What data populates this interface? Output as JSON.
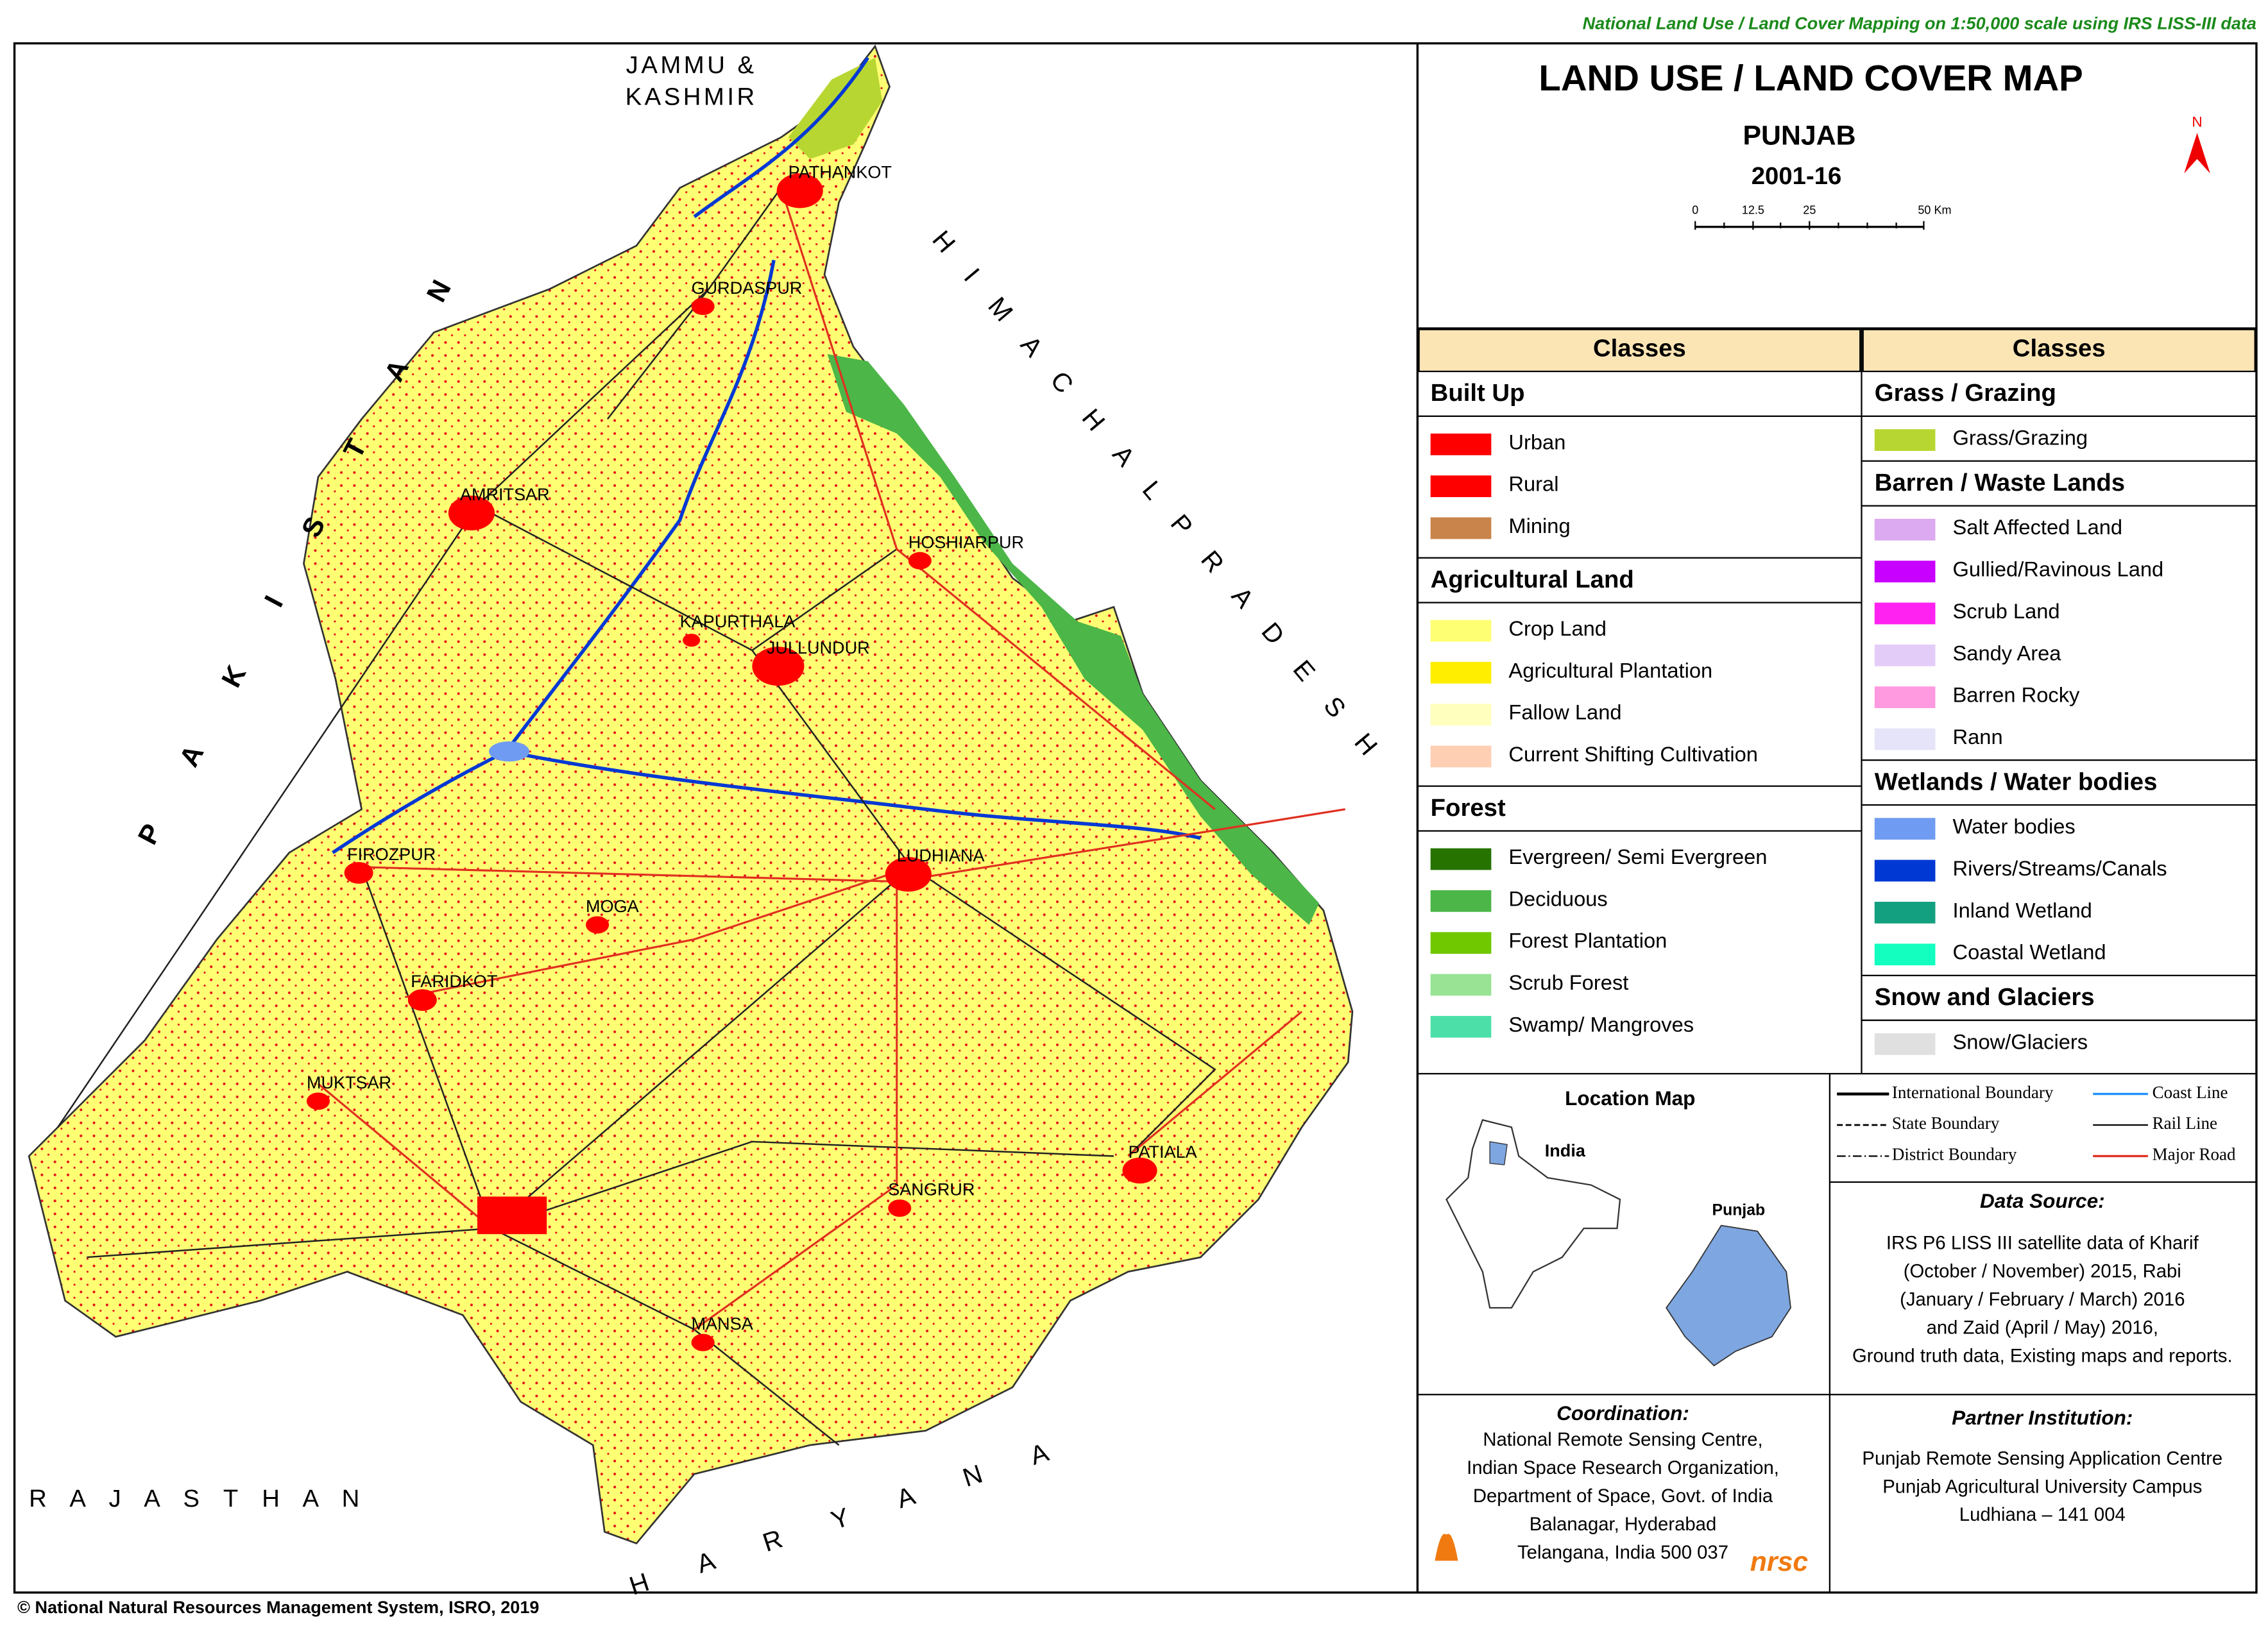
{
  "header": {
    "tagline": "National Land Use / Land Cover Mapping on 1:50,000 scale using IRS LISS-III data",
    "title": "LAND USE / LAND COVER MAP",
    "state": "PUNJAB",
    "period": "2001-16",
    "north": "N",
    "scale_labels": [
      "0",
      "12.5",
      "25",
      "50 Km"
    ]
  },
  "map": {
    "neighbors": {
      "jk": [
        "JAMMU &",
        "KASHMIR"
      ],
      "pakistan": "P A K I S T A N",
      "himachal": "H I M A C H A L   P R A D E S H",
      "haryana": "H A R Y A N A",
      "rajasthan": "R A J A S T H A N"
    },
    "cities": [
      "PATHANKOT",
      "GURDASPUR",
      "AMRITSAR",
      "HOSHIARPUR",
      "KAPURTHALA",
      "JULLUNDUR",
      "FIROZPUR",
      "LUDHIANA",
      "MOGA",
      "FARIDKOT",
      "MUKTSAR",
      "PATIALA",
      "SANGRUR",
      "MANSA"
    ]
  },
  "legend": {
    "columns": [
      {
        "heading": "Classes",
        "groups": [
          {
            "name": "Built Up",
            "items": [
              {
                "label": "Urban",
                "color": "#ff0000"
              },
              {
                "label": "Rural",
                "color": "#ff0000"
              },
              {
                "label": "Mining",
                "color": "#c8844a"
              }
            ]
          },
          {
            "name": "Agricultural Land",
            "items": [
              {
                "label": "Crop Land",
                "color": "#ffff73"
              },
              {
                "label": "Agricultural Plantation",
                "color": "#ffee00"
              },
              {
                "label": "Fallow Land",
                "color": "#ffffbe"
              },
              {
                "label": "Current Shifting Cultivation",
                "color": "#ffcfb4"
              }
            ]
          },
          {
            "name": "Forest",
            "items": [
              {
                "label": "Evergreen/ Semi Evergreen",
                "color": "#267300"
              },
              {
                "label": "Deciduous",
                "color": "#4cb648"
              },
              {
                "label": "Forest Plantation",
                "color": "#70c800"
              },
              {
                "label": "Scrub Forest",
                "color": "#98e394"
              },
              {
                "label": "Swamp/ Mangroves",
                "color": "#4ce0a8"
              }
            ]
          }
        ]
      },
      {
        "heading": "Classes",
        "groups": [
          {
            "name": "Grass / Grazing",
            "items": [
              {
                "label": "Grass/Grazing",
                "color": "#b8d631"
              }
            ]
          },
          {
            "name": "Barren / Waste Lands",
            "items": [
              {
                "label": "Salt Affected Land",
                "color": "#dcaaf0"
              },
              {
                "label": "Gullied/Ravinous Land",
                "color": "#c800ff"
              },
              {
                "label": "Scrub Land",
                "color": "#ff22f0"
              },
              {
                "label": "Sandy Area",
                "color": "#e4ccf8"
              },
              {
                "label": "Barren Rocky",
                "color": "#ff99e0"
              },
              {
                "label": "Rann",
                "color": "#e6e4f8"
              }
            ]
          },
          {
            "name": "Wetlands / Water bodies",
            "items": [
              {
                "label": "Water bodies",
                "color": "#6f9cf2"
              },
              {
                "label": "Rivers/Streams/Canals",
                "color": "#0038d4"
              },
              {
                "label": "Inland Wetland",
                "color": "#12a080"
              },
              {
                "label": "Coastal Wetland",
                "color": "#12ffc0"
              }
            ]
          },
          {
            "name": "Snow and Glaciers",
            "items": [
              {
                "label": "Snow/Glaciers",
                "color": "#e0e0e0"
              }
            ]
          }
        ]
      }
    ]
  },
  "location_map": {
    "title": "Location Map",
    "india": "India",
    "punjab": "Punjab"
  },
  "line_legend": [
    {
      "label": "International Boundary",
      "style": "intl"
    },
    {
      "label": "Coast Line",
      "style": "coast"
    },
    {
      "label": "State Boundary",
      "style": "state"
    },
    {
      "label": "Rail Line",
      "style": "rail"
    },
    {
      "label": "District Boundary",
      "style": "district"
    },
    {
      "label": "Major Road",
      "style": "road"
    }
  ],
  "data_source": {
    "title": "Data Source:",
    "lines": [
      "IRS P6 LISS III satellite data of Kharif",
      "(October / November) 2015, Rabi",
      "(January / February / March) 2016",
      "and Zaid (April / May) 2016,",
      "Ground truth data, Existing maps and reports."
    ]
  },
  "coordination": {
    "title": "Coordination:",
    "lines": [
      "National Remote Sensing Centre,",
      "Indian Space Research Organization,",
      "Department of Space, Govt. of India",
      "Balanagar, Hyderabad",
      "Telangana, India 500 037"
    ],
    "logo": "nrsc"
  },
  "partner": {
    "title": "Partner Institution:",
    "lines": [
      "Punjab  Remote Sensing Application  Centre",
      "Punjab  Agricultural University Campus",
      "Ludhiana  – 141 004"
    ]
  },
  "footer": "© National Natural Resources Management System, ISRO, 2019"
}
